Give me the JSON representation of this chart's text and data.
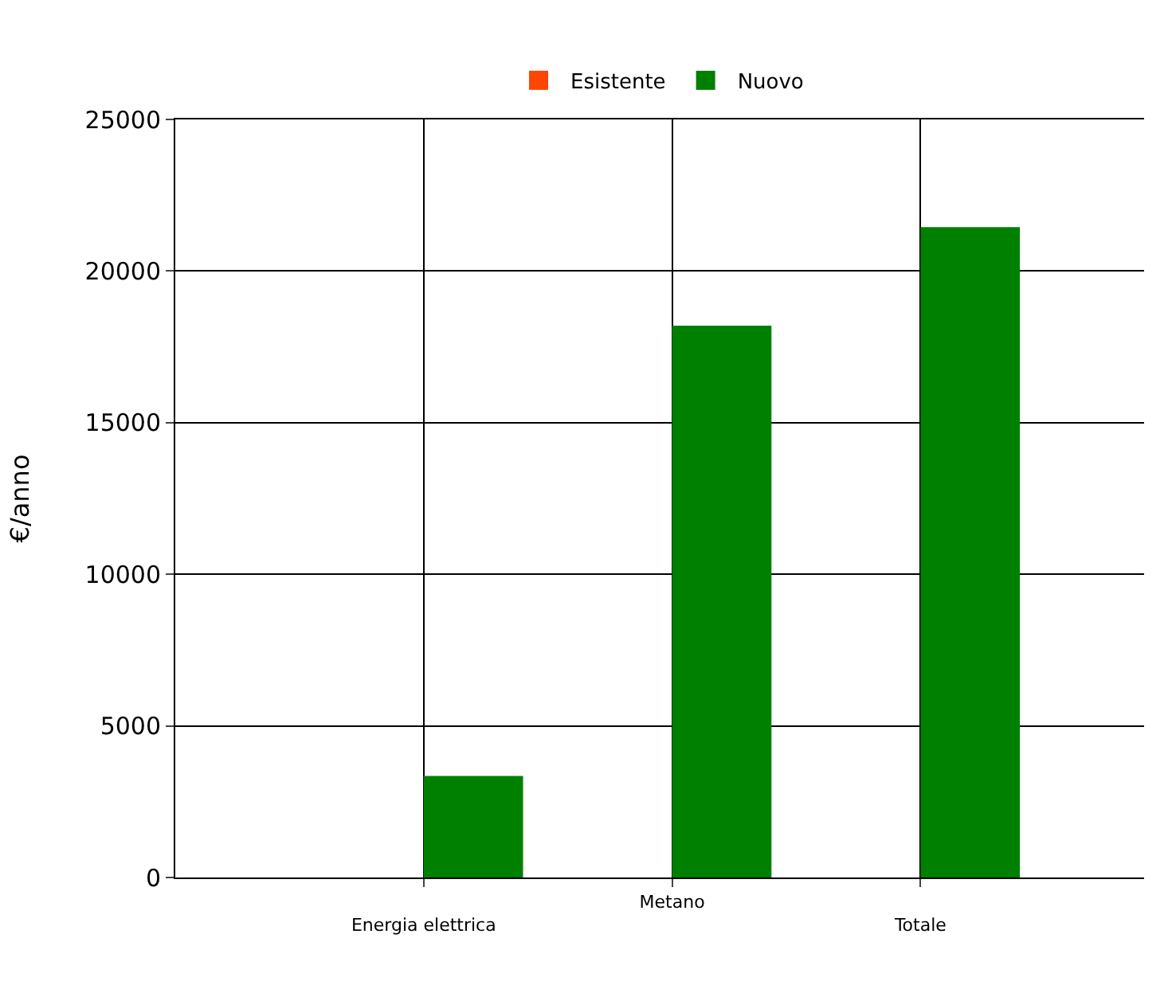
{
  "chart_data": {
    "type": "bar",
    "ylabel": "€/anno",
    "categories": [
      "Energia elettrica",
      "Metano",
      "Totale"
    ],
    "series": [
      {
        "name": "Esistente",
        "color": "#ff4500",
        "values": [
          0,
          0,
          0
        ]
      },
      {
        "name": "Nuovo",
        "color": "#008000",
        "values": [
          3350,
          18200,
          21450
        ]
      }
    ],
    "ylim": [
      0,
      25000
    ],
    "yticks": [
      0,
      5000,
      10000,
      15000,
      20000,
      25000
    ],
    "grid": true,
    "legend": "top"
  }
}
